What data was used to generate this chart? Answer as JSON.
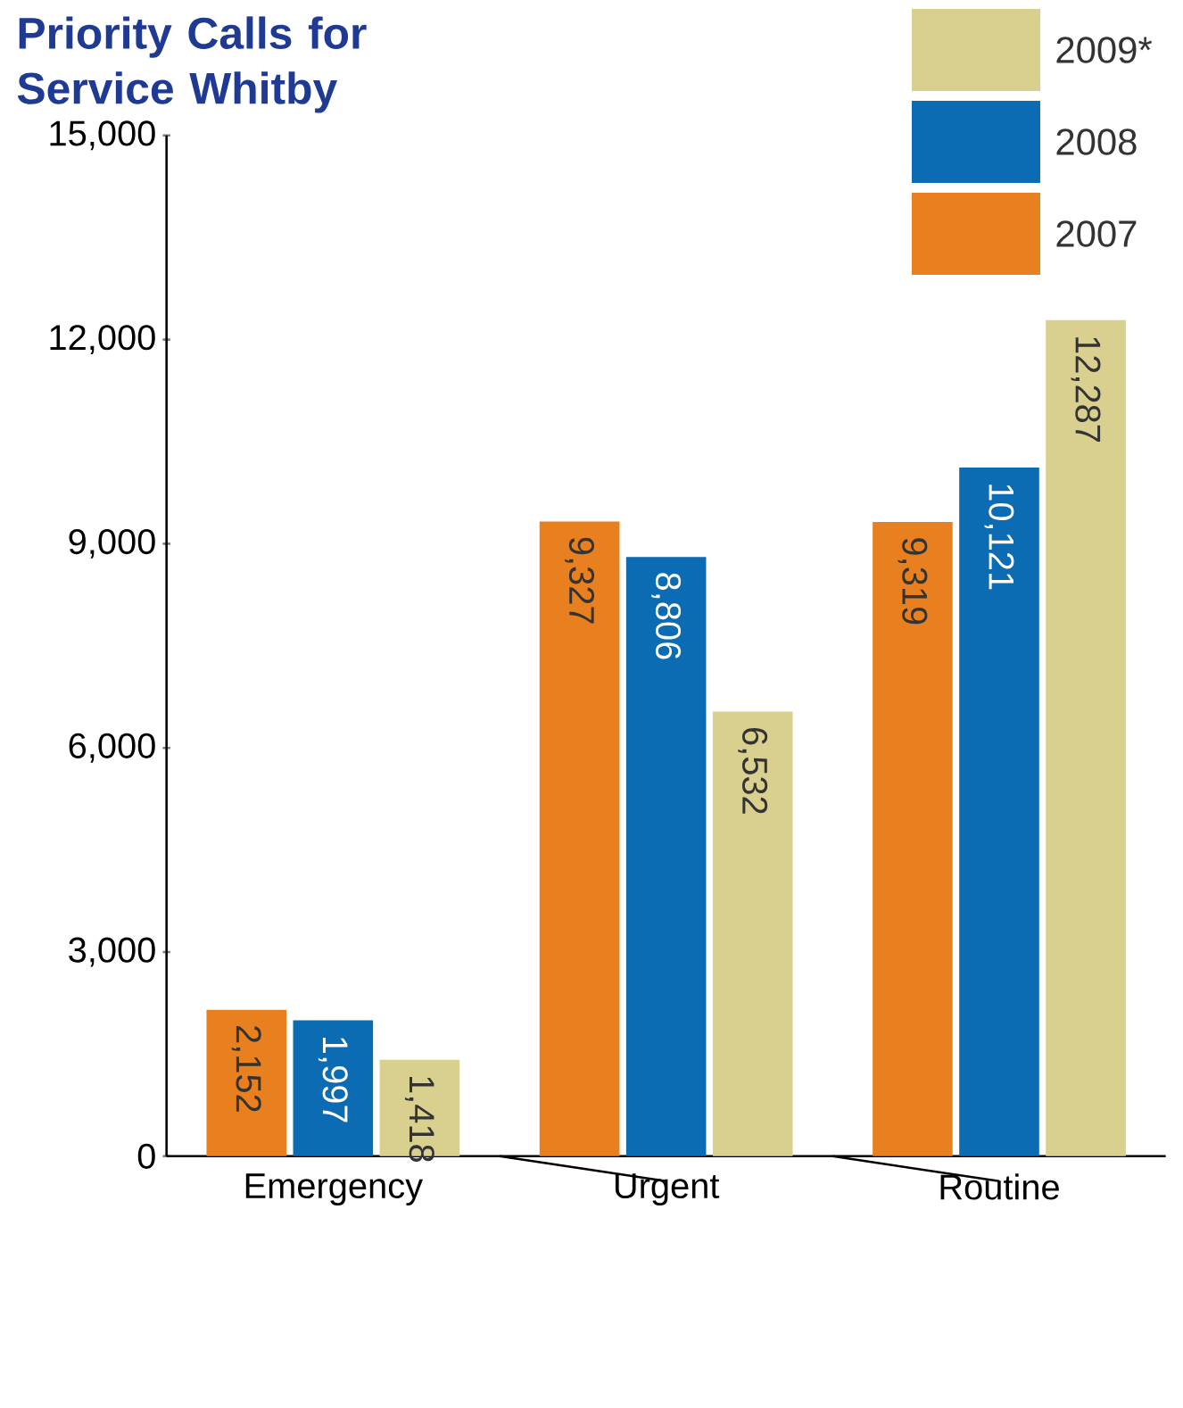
{
  "chart_data": {
    "type": "bar",
    "title": "Priority Calls for Service Whitby",
    "categories": [
      "Emergency",
      "Urgent",
      "Routine"
    ],
    "series": [
      {
        "name": "2007",
        "color": "#e8801f",
        "values": [
          2152,
          9327,
          9319
        ],
        "value_labels": [
          "2,152",
          "9,327",
          "9,319"
        ]
      },
      {
        "name": "2008",
        "color": "#0b6bb3",
        "values": [
          1997,
          8806,
          10121
        ],
        "value_labels": [
          "1,997",
          "8,806",
          "10,121"
        ]
      },
      {
        "name": "2009*",
        "color": "#d9cf8f",
        "values": [
          1418,
          6532,
          12287
        ],
        "value_labels": [
          "1,418",
          "6,532",
          "12,287"
        ]
      }
    ],
    "ylim": [
      0,
      15000
    ],
    "yticks": [
      {
        "value": 0,
        "label": "0"
      },
      {
        "value": 3000,
        "label": "3,000"
      },
      {
        "value": 6000,
        "label": "6,000"
      },
      {
        "value": 9000,
        "label": "9,000"
      },
      {
        "value": 12000,
        "label": "12,000"
      },
      {
        "value": 15000,
        "label": "15,000"
      }
    ],
    "legend": "top right"
  }
}
